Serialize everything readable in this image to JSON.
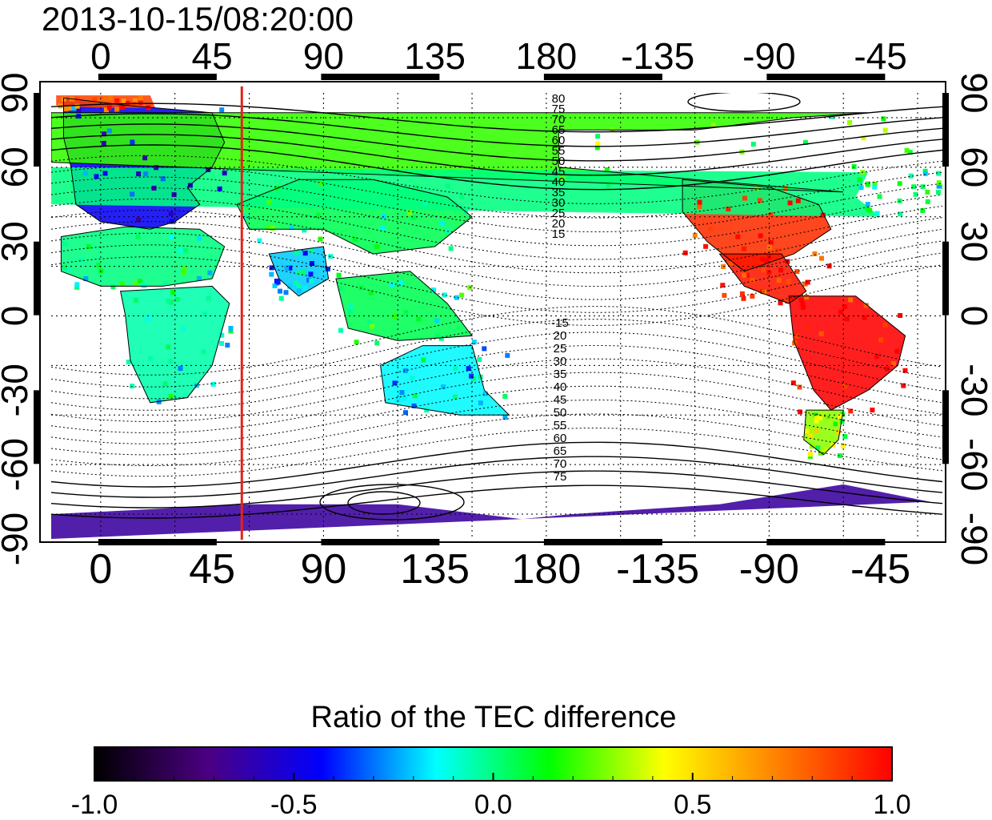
{
  "figure": {
    "timestamp": "2013-10-15/08:20:00",
    "colorbar_title": "Ratio of the TEC difference"
  },
  "map": {
    "projection": "cylindrical",
    "lon_center": 180,
    "lat_range": [
      -90,
      90
    ],
    "marker_longitude": 57,
    "marker_color": "#e2231a",
    "grid": true
  },
  "axes": {
    "top_lon_labels": [
      "0",
      "45",
      "90",
      "135",
      "180",
      "-135",
      "-90",
      "-45"
    ],
    "bottom_lon_labels": [
      "0",
      "45",
      "90",
      "135",
      "180",
      "-135",
      "-90",
      "-45"
    ],
    "left_lat_labels": [
      "90",
      "60",
      "30",
      "0",
      "-30",
      "-60",
      "-90"
    ],
    "right_lat_labels": [
      "90",
      "60",
      "30",
      "0",
      "-30",
      "-60",
      "-90"
    ]
  },
  "contour_labels": {
    "north": [
      "80",
      "75",
      "70",
      "65",
      "60",
      "55",
      "50",
      "45",
      "40",
      "35",
      "30",
      "25",
      "20",
      "15"
    ],
    "south": [
      "-15",
      "20",
      "25",
      "30",
      "35",
      "40",
      "45",
      "50",
      "55",
      "60",
      "65",
      "70",
      "75"
    ]
  },
  "colorbar": {
    "range": [
      -1.0,
      1.0
    ],
    "tick_labels": [
      "-1.0",
      "-0.5",
      "0.0",
      "0.5",
      "1.0"
    ],
    "stops": [
      "#000000",
      "#4b0082",
      "#0000ff",
      "#00ffff",
      "#00ff00",
      "#ffff00",
      "#ff8000",
      "#ff0000"
    ]
  },
  "regions": [
    {
      "name": "europe",
      "value": -0.45
    },
    {
      "name": "north-africa",
      "value": 0.0
    },
    {
      "name": "africa",
      "value": -0.05
    },
    {
      "name": "asia",
      "value": 0.05
    },
    {
      "name": "south-asia",
      "value": -0.2
    },
    {
      "name": "indonesia",
      "value": 0.05
    },
    {
      "name": "australia",
      "value": -0.15
    },
    {
      "name": "north-america-arctic",
      "value": 0.2
    },
    {
      "name": "north-america",
      "value": 0.9
    },
    {
      "name": "central-america",
      "value": 0.95
    },
    {
      "name": "south-america",
      "value": 1.0
    },
    {
      "name": "patagonia",
      "value": 0.3
    },
    {
      "name": "antarctica",
      "value": -0.65
    },
    {
      "name": "arctic-europe",
      "value": 0.85
    },
    {
      "name": "north-atlantic",
      "value": 0.0
    }
  ]
}
